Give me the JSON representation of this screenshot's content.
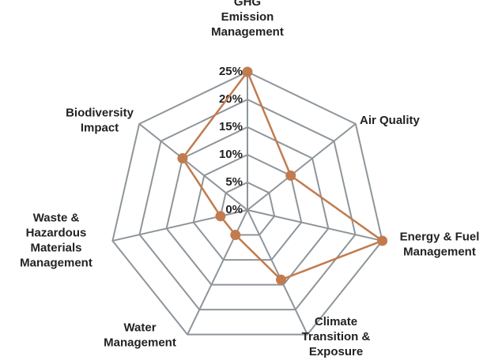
{
  "chart_data": {
    "type": "radar",
    "categories": [
      [
        "GHG",
        "Emission",
        "Management"
      ],
      [
        "Air Quality"
      ],
      [
        "Energy & Fuel",
        "Management"
      ],
      [
        "Climate",
        "Transition &",
        "Exposure"
      ],
      [
        "Water",
        "Management"
      ],
      [
        "Waste &",
        "Hazardous",
        "Materials",
        "Management"
      ],
      [
        "Biodiversity",
        "Impact"
      ]
    ],
    "series": [
      {
        "name": null,
        "color": "#c27b4e",
        "values": [
          25,
          10,
          25,
          14,
          5,
          5,
          15
        ]
      }
    ],
    "ylim": [
      0,
      25
    ],
    "yticks": [
      {
        "value": 0,
        "label": "0%"
      },
      {
        "value": 5,
        "label": "5%"
      },
      {
        "value": 10,
        "label": "10%"
      },
      {
        "value": 15,
        "label": "15%"
      },
      {
        "value": 20,
        "label": "20%"
      },
      {
        "value": 25,
        "label": "25%"
      }
    ],
    "grid": true
  }
}
